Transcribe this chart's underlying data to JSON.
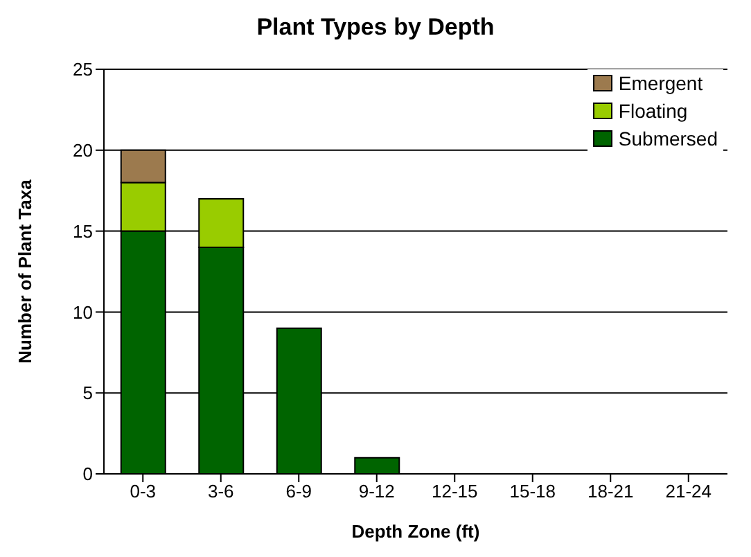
{
  "chart_data": {
    "type": "bar",
    "title": "Plant Types by Depth",
    "xlabel": "Depth Zone (ft)",
    "ylabel": "Number of Plant Taxa",
    "categories": [
      "0-3",
      "3-6",
      "6-9",
      "9-12",
      "12-15",
      "15-18",
      "18-21",
      "21-24"
    ],
    "series": [
      {
        "name": "Submersed",
        "color": "#006400",
        "values": [
          15,
          14,
          9,
          1,
          0,
          0,
          0,
          0
        ]
      },
      {
        "name": "Floating",
        "color": "#99cc00",
        "values": [
          3,
          3,
          0,
          0,
          0,
          0,
          0,
          0
        ]
      },
      {
        "name": "Emergent",
        "color": "#9c7a4e",
        "values": [
          2,
          0,
          0,
          0,
          0,
          0,
          0,
          0
        ]
      }
    ],
    "stacked": true,
    "ylim": [
      0,
      25
    ],
    "yticks": [
      0,
      5,
      10,
      15,
      20,
      25
    ],
    "grid": "y",
    "legend": "top right"
  }
}
